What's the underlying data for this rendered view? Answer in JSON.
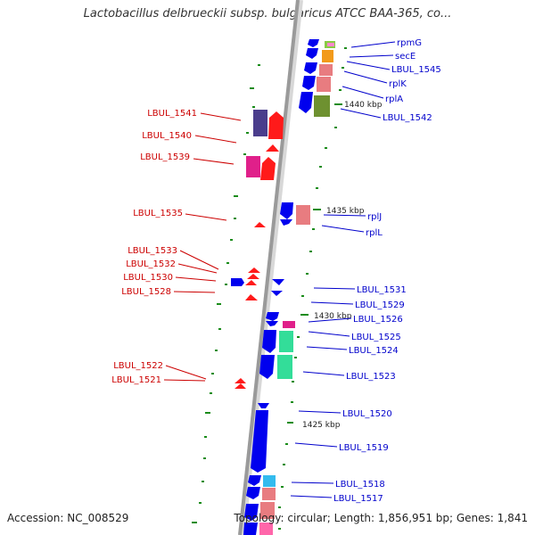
{
  "title": "Lactobacillus delbrueckii subsp. bulgaricus ATCC BAA-365, co...",
  "footer": {
    "accession": "Accession: NC_008529",
    "stats": "Topology: circular; Length: 1,856,951 bp; Genes: 1,841"
  },
  "ticks": [
    "1440 kbp",
    "1435 kbp",
    "1430 kbp",
    "1425 kbp"
  ],
  "labels_right": [
    "rpmG",
    "secE",
    "LBUL_1545",
    "rplK",
    "rplA",
    "LBUL_1542",
    "rplJ",
    "rplL",
    "LBUL_1531",
    "LBUL_1529",
    "LBUL_1526",
    "LBUL_1525",
    "LBUL_1524",
    "LBUL_1523",
    "LBUL_1520",
    "LBUL_1519",
    "LBUL_1518",
    "LBUL_1517"
  ],
  "labels_left": [
    "LBUL_1541",
    "LBUL_1540",
    "LBUL_1539",
    "LBUL_1535",
    "LBUL_1533",
    "LBUL_1532",
    "LBUL_1530",
    "LBUL_1528",
    "LBUL_1522",
    "LBUL_1521"
  ],
  "colors": {
    "backbone": "#9a9a9a",
    "forward_gene": "#0000ee",
    "reverse_gene": "#ff1a1a",
    "right_label": "#0000cc",
    "left_label": "#cc0000",
    "tick": "#1a8c1a"
  }
}
